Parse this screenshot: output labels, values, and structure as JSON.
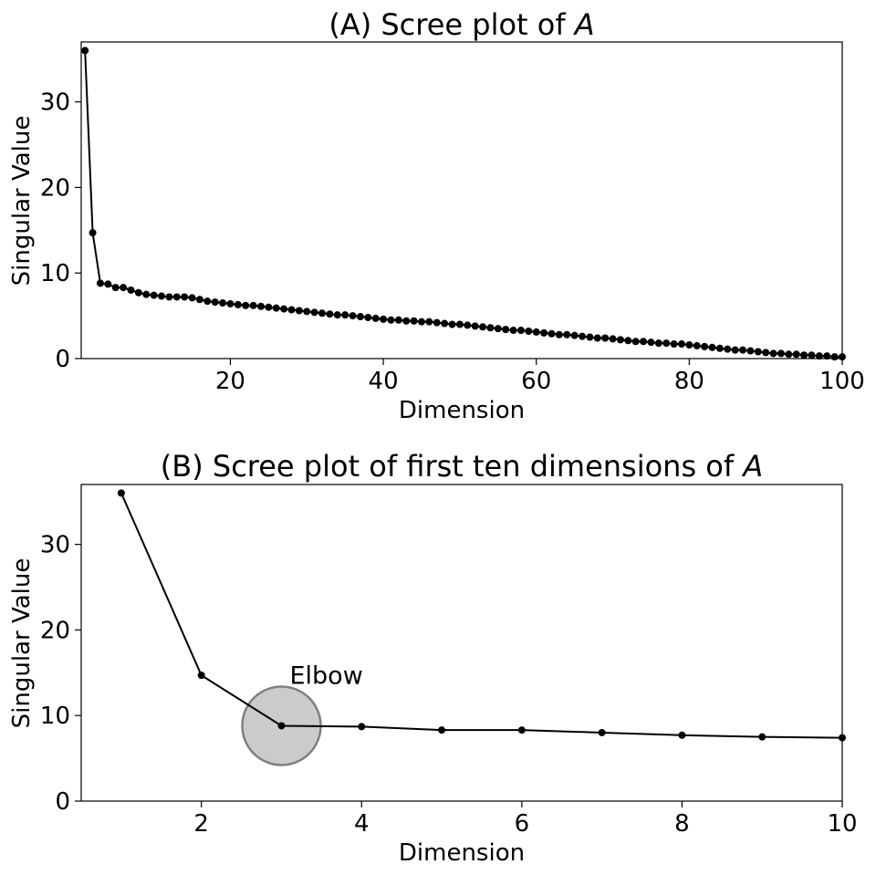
{
  "chart_data": [
    {
      "type": "line",
      "title": "(A) Scree plot of ",
      "title_italic": "A",
      "xlabel": "Dimension",
      "ylabel": "Singular Value",
      "xlim": [
        0.5,
        100
      ],
      "ylim": [
        0,
        37
      ],
      "xticks": [
        20,
        40,
        60,
        80,
        100
      ],
      "yticks": [
        0,
        10,
        20,
        30
      ],
      "grid": false,
      "x": [
        1,
        2,
        3,
        4,
        5,
        6,
        7,
        8,
        9,
        10,
        11,
        12,
        13,
        14,
        15,
        16,
        17,
        18,
        19,
        20,
        21,
        22,
        23,
        24,
        25,
        26,
        27,
        28,
        29,
        30,
        31,
        32,
        33,
        34,
        35,
        36,
        37,
        38,
        39,
        40,
        41,
        42,
        43,
        44,
        45,
        46,
        47,
        48,
        49,
        50,
        51,
        52,
        53,
        54,
        55,
        56,
        57,
        58,
        59,
        60,
        61,
        62,
        63,
        64,
        65,
        66,
        67,
        68,
        69,
        70,
        71,
        72,
        73,
        74,
        75,
        76,
        77,
        78,
        79,
        80,
        81,
        82,
        83,
        84,
        85,
        86,
        87,
        88,
        89,
        90,
        91,
        92,
        93,
        94,
        95,
        96,
        97,
        98,
        99,
        100
      ],
      "values": [
        36.0,
        14.7,
        8.8,
        8.7,
        8.3,
        8.3,
        8.0,
        7.7,
        7.5,
        7.4,
        7.3,
        7.2,
        7.2,
        7.2,
        7.1,
        6.9,
        6.7,
        6.6,
        6.5,
        6.4,
        6.3,
        6.2,
        6.2,
        6.1,
        6.0,
        5.9,
        5.8,
        5.7,
        5.6,
        5.5,
        5.4,
        5.3,
        5.2,
        5.1,
        5.1,
        5.0,
        4.9,
        4.8,
        4.7,
        4.6,
        4.5,
        4.5,
        4.4,
        4.4,
        4.3,
        4.3,
        4.2,
        4.1,
        4.0,
        4.0,
        3.9,
        3.8,
        3.7,
        3.6,
        3.5,
        3.4,
        3.3,
        3.3,
        3.2,
        3.1,
        3.0,
        2.9,
        2.8,
        2.8,
        2.7,
        2.6,
        2.5,
        2.4,
        2.4,
        2.3,
        2.2,
        2.1,
        2.0,
        2.0,
        1.9,
        1.8,
        1.8,
        1.7,
        1.7,
        1.6,
        1.5,
        1.4,
        1.3,
        1.2,
        1.1,
        1.0,
        1.0,
        0.9,
        0.8,
        0.7,
        0.6,
        0.6,
        0.5,
        0.5,
        0.4,
        0.4,
        0.3,
        0.3,
        0.2,
        0.2
      ],
      "color": "#000000"
    },
    {
      "type": "line",
      "title": "(B) Scree plot of first ten dimensions of ",
      "title_italic": "A",
      "xlabel": "Dimension",
      "ylabel": "Singular Value",
      "xlim": [
        0.5,
        10
      ],
      "ylim": [
        0,
        37
      ],
      "xticks": [
        2,
        4,
        6,
        8,
        10
      ],
      "yticks": [
        0,
        10,
        20,
        30
      ],
      "grid": false,
      "x": [
        1,
        2,
        3,
        4,
        5,
        6,
        7,
        8,
        9,
        10
      ],
      "values": [
        36.0,
        14.7,
        8.8,
        8.7,
        8.3,
        8.3,
        8.0,
        7.7,
        7.5,
        7.4
      ],
      "color": "#000000",
      "annotation": {
        "text": "Elbow",
        "x": 3,
        "y": 8.8,
        "marker": "circle",
        "fill": "#a0a0a0",
        "stroke": "#808080"
      }
    }
  ]
}
